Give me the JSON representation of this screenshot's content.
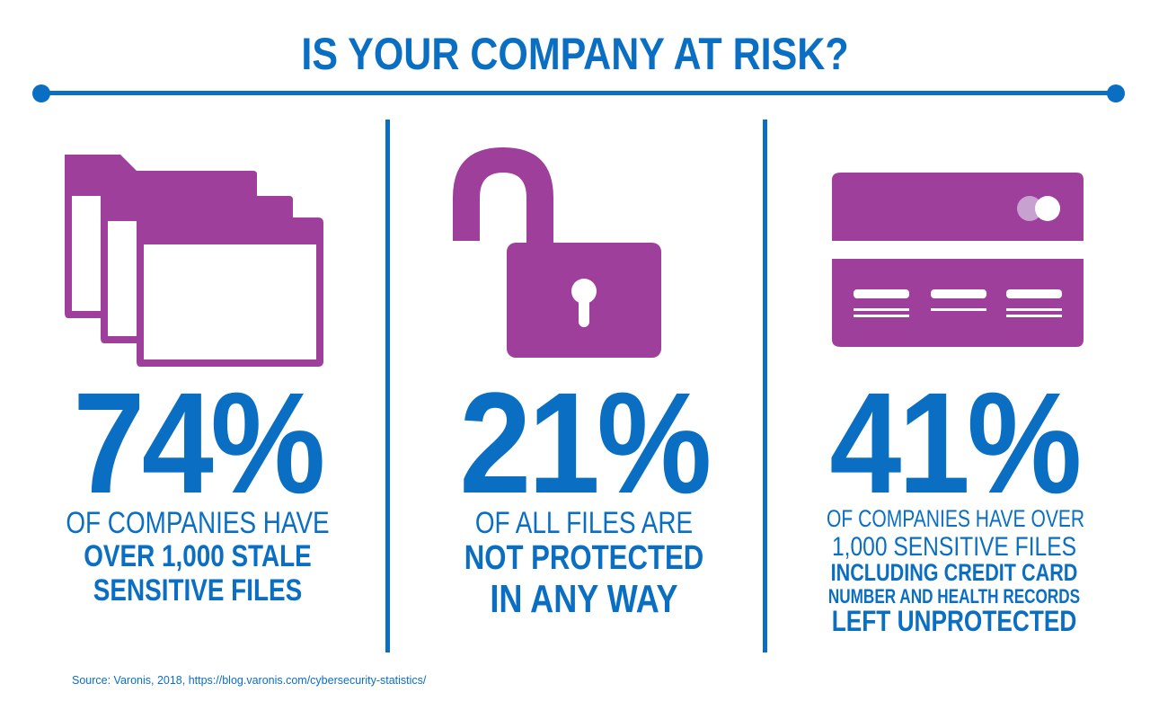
{
  "title": "IS YOUR COMPANY AT RISK?",
  "colors": {
    "blue": "#0a6fc2",
    "purple": "#9e3f9c",
    "light_purple": "#c7a1cf",
    "white": "#ffffff"
  },
  "stats": [
    {
      "icon": "folders-icon",
      "value": "74%",
      "text_regular": [
        "OF COMPANIES HAVE"
      ],
      "text_bold": [
        "OVER 1,000 STALE",
        "SENSITIVE FILES"
      ]
    },
    {
      "icon": "unlocked-padlock-icon",
      "value": "21%",
      "text_regular": [
        "OF ALL FILES ARE"
      ],
      "text_bold": [
        "NOT PROTECTED",
        "IN ANY WAY"
      ]
    },
    {
      "icon": "credit-card-icon",
      "value": "41%",
      "text_regular": [
        "OF COMPANIES HAVE OVER",
        "1,000 SENSITIVE FILES"
      ],
      "text_bold": [
        "INCLUDING CREDIT CARD",
        "NUMBER AND HEALTH RECORDS",
        "LEFT UNPROTECTED"
      ]
    }
  ],
  "source": "Source: Varonis, 2018, https://blog.varonis.com/cybersecurity-statistics/"
}
